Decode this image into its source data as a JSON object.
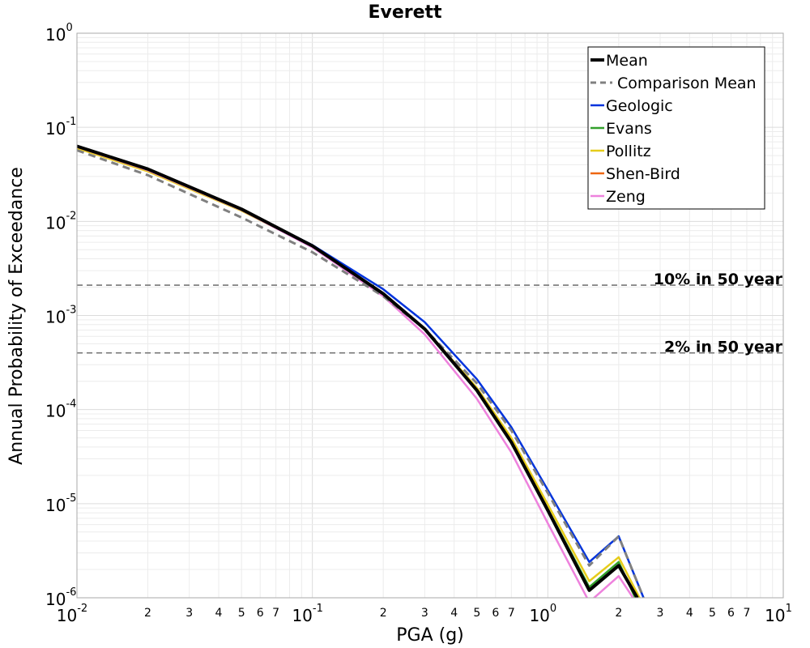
{
  "chart_data": {
    "type": "line",
    "title": "Everett",
    "xlabel": "PGA (g)",
    "ylabel": "Annual Probability of Exceedance",
    "x_scale": "log",
    "y_scale": "log",
    "xlim": [
      0.01,
      10
    ],
    "ylim": [
      1e-06,
      1
    ],
    "grid": true,
    "legend_position": "top-right",
    "x_major_ticks": [
      {
        "base": "10",
        "exp": "-2"
      },
      {
        "base": "10",
        "exp": "-1"
      },
      {
        "base": "10",
        "exp": "0"
      },
      {
        "base": "10",
        "exp": "1"
      }
    ],
    "y_major_ticks": [
      {
        "base": "10",
        "exp": "0"
      },
      {
        "base": "10",
        "exp": "-1"
      },
      {
        "base": "10",
        "exp": "-2"
      },
      {
        "base": "10",
        "exp": "-3"
      },
      {
        "base": "10",
        "exp": "-4"
      },
      {
        "base": "10",
        "exp": "-5"
      },
      {
        "base": "10",
        "exp": "-6"
      }
    ],
    "x_minor_tick_labels": [
      "2",
      "3",
      "4",
      "5",
      "6",
      "7"
    ],
    "reference_lines": [
      {
        "label": "10% in 50 year",
        "y": 0.0021
      },
      {
        "label": "2% in 50 year",
        "y": 0.0004
      }
    ],
    "series": [
      {
        "name": "Mean",
        "color": "#000000",
        "dash": "solid",
        "width": 4,
        "x": [
          0.01,
          0.02,
          0.05,
          0.1,
          0.2,
          0.3,
          0.5,
          0.7,
          1.0,
          1.5,
          2.0,
          2.4
        ],
        "y": [
          0.063,
          0.036,
          0.0135,
          0.0055,
          0.0017,
          0.00072,
          0.00016,
          4.5e-05,
          8.5e-06,
          1.2e-06,
          2.2e-06,
          1e-06
        ]
      },
      {
        "name": "Comparison Mean",
        "color": "#808080",
        "dash": "dashed",
        "width": 3,
        "x": [
          0.01,
          0.02,
          0.05,
          0.1,
          0.2,
          0.3,
          0.5,
          0.7,
          1.0,
          1.5,
          2.0,
          2.55
        ],
        "y": [
          0.057,
          0.031,
          0.011,
          0.0047,
          0.0016,
          0.00072,
          0.00019,
          6e-05,
          1.3e-05,
          2.2e-06,
          4.5e-06,
          1e-06
        ]
      },
      {
        "name": "Geologic",
        "color": "#0033dd",
        "dash": "solid",
        "width": 2.5,
        "x": [
          0.01,
          0.02,
          0.05,
          0.1,
          0.2,
          0.3,
          0.5,
          0.7,
          1.0,
          1.5,
          2.0,
          2.55
        ],
        "y": [
          0.062,
          0.035,
          0.0134,
          0.0056,
          0.0019,
          0.00085,
          0.00021,
          6.5e-05,
          1.4e-05,
          2.4e-06,
          4.5e-06,
          1e-06
        ]
      },
      {
        "name": "Evans",
        "color": "#33a02c",
        "dash": "solid",
        "width": 2.5,
        "x": [
          0.01,
          0.02,
          0.05,
          0.1,
          0.2,
          0.3,
          0.5,
          0.7,
          1.0,
          1.5,
          2.0,
          2.35
        ],
        "y": [
          0.062,
          0.035,
          0.0132,
          0.0054,
          0.0017,
          0.00071,
          0.00016,
          4.6e-05,
          8.8e-06,
          1.3e-06,
          2.4e-06,
          1e-06
        ]
      },
      {
        "name": "Pollitz",
        "color": "#e6cc1a",
        "dash": "solid",
        "width": 2.5,
        "x": [
          0.01,
          0.02,
          0.05,
          0.1,
          0.2,
          0.3,
          0.5,
          0.7,
          1.0,
          1.5,
          2.0,
          2.45
        ],
        "y": [
          0.06,
          0.034,
          0.013,
          0.0054,
          0.0017,
          0.00073,
          0.00017,
          5e-05,
          9.8e-06,
          1.5e-06,
          2.7e-06,
          1e-06
        ]
      },
      {
        "name": "Shen-Bird",
        "color": "#ee6611",
        "dash": "solid",
        "width": 2.5,
        "x": [
          0.01,
          0.02,
          0.05,
          0.1,
          0.2,
          0.3,
          0.5,
          0.7,
          1.0,
          1.5,
          2.0,
          2.4
        ],
        "y": [
          0.062,
          0.035,
          0.0133,
          0.0055,
          0.0017,
          0.00072,
          0.00016,
          4.5e-05,
          8.6e-06,
          1.2e-06,
          2.2e-06,
          1e-06
        ]
      },
      {
        "name": "Zeng",
        "color": "#ee82dd",
        "dash": "solid",
        "width": 2.5,
        "x": [
          0.01,
          0.02,
          0.05,
          0.1,
          0.2,
          0.3,
          0.5,
          0.7,
          1.0,
          1.5,
          2.0,
          2.3
        ],
        "y": [
          0.062,
          0.035,
          0.0132,
          0.0053,
          0.0016,
          0.00063,
          0.00013,
          3.5e-05,
          6.2e-06,
          9e-07,
          1.7e-06,
          1e-06
        ]
      }
    ]
  }
}
